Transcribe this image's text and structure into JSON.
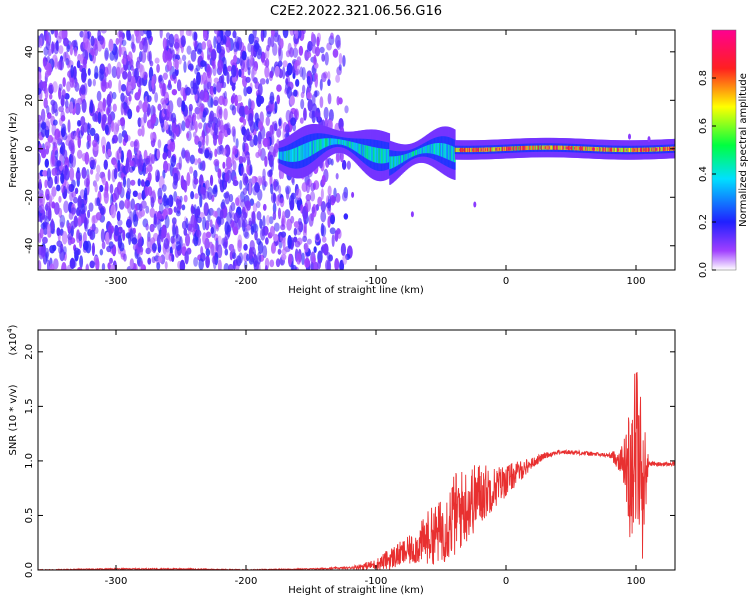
{
  "title": "C2E2.2022.321.06.56.G16",
  "chart_data": [
    {
      "type": "heatmap",
      "xlabel": "Height of straight line (km)",
      "ylabel": "Frequency (Hz)",
      "xlim": [
        -360,
        130
      ],
      "ylim": [
        -50,
        49
      ],
      "x_ticks": [
        -300,
        -200,
        -100,
        0,
        100
      ],
      "y_ticks": [
        -40,
        -20,
        0,
        20,
        40
      ],
      "colorbar": {
        "label": "Normalized spectral amplitude",
        "range": [
          0.0,
          1.0
        ],
        "ticks": [
          "0.0",
          "0.2",
          "0.4",
          "0.6",
          "0.8"
        ],
        "colormap": [
          "#ffffff",
          "#8000ff",
          "#0000ff",
          "#00ffff",
          "#00ff00",
          "#ffff00",
          "#ff0000",
          "#ff00a0"
        ]
      },
      "regions": [
        {
          "x_range": [
            -360,
            -135
          ],
          "description_values": {
            "amplitude": 0.1,
            "spread_hz": [
              -50,
              49
            ]
          }
        },
        {
          "x_range": [
            -135,
            -110
          ],
          "description_values": {
            "amplitude": 0.05,
            "spread_hz": [
              -50,
              49
            ]
          }
        },
        {
          "x_range": [
            -175,
            -40
          ],
          "description_values": {
            "amplitude": 0.45,
            "spread_hz": [
              -10,
              8
            ]
          }
        },
        {
          "x_range": [
            -40,
            130
          ],
          "description_values": {
            "amplitude": 0.8,
            "spread_hz": [
              -3,
              3
            ]
          }
        }
      ]
    },
    {
      "type": "line",
      "xlabel": "Height of straight line (km)",
      "ylabel": "SNR (10 * v/v)",
      "y_multiplier": "(x10^4)",
      "xlim": [
        -360,
        130
      ],
      "ylim": [
        0.0,
        2.2
      ],
      "x_ticks": [
        -300,
        -200,
        -100,
        0,
        100
      ],
      "y_ticks": [
        "0.0",
        "0.5",
        "1.0",
        "1.5",
        "2.0"
      ],
      "series": [
        {
          "color": "#e83030",
          "x": [
            -360,
            -300,
            -250,
            -200,
            -150,
            -120,
            -100,
            -90,
            -80,
            -70,
            -60,
            -50,
            -40,
            -30,
            -20,
            -10,
            0,
            10,
            20,
            30,
            40,
            50,
            60,
            70,
            80,
            90,
            95,
            100,
            105,
            110,
            115,
            120,
            130
          ],
          "y": [
            0.0,
            0.01,
            0.01,
            0.0,
            0.01,
            0.02,
            0.05,
            0.1,
            0.15,
            0.2,
            0.3,
            0.35,
            0.5,
            0.6,
            0.7,
            0.75,
            0.82,
            0.9,
            0.98,
            1.05,
            1.08,
            1.08,
            1.07,
            1.06,
            1.05,
            1.0,
            0.9,
            1.2,
            0.8,
            0.98,
            0.97,
            0.97,
            0.97
          ],
          "envelope_amplitude": [
            0.005,
            0.005,
            0.005,
            0.005,
            0.005,
            0.01,
            0.05,
            0.1,
            0.12,
            0.15,
            0.25,
            0.3,
            0.4,
            0.35,
            0.3,
            0.2,
            0.15,
            0.1,
            0.05,
            0.03,
            0.02,
            0.02,
            0.02,
            0.02,
            0.02,
            0.15,
            0.6,
            0.9,
            0.7,
            0.02,
            0.02,
            0.02,
            0.02
          ]
        }
      ]
    }
  ]
}
